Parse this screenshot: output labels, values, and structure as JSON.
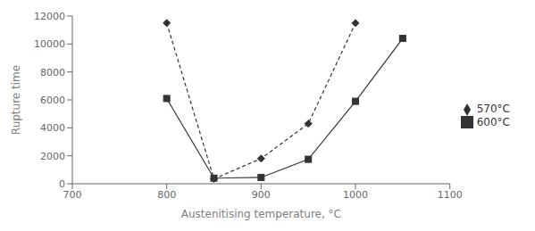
{
  "chart_data": {
    "type": "line",
    "xlabel": "Austenitising temperature, °C",
    "ylabel": "Rupture time",
    "xlim": [
      700,
      1100
    ],
    "xticks": [
      700,
      800,
      900,
      1000,
      1100
    ],
    "ylim": [
      0,
      12000
    ],
    "yticks": [
      0,
      2000,
      4000,
      6000,
      8000,
      10000,
      12000
    ],
    "grid": false,
    "legend": "right",
    "series": [
      {
        "name": "570°C",
        "color": "#333333",
        "marker": "diamond",
        "line_style": "dashed",
        "x": [
          800,
          850,
          900,
          950,
          1000
        ],
        "values": [
          11500,
          350,
          1800,
          4300,
          11500
        ]
      },
      {
        "name": "600°C",
        "color": "#333333",
        "marker": "square",
        "line_style": "solid",
        "x": [
          800,
          850,
          900,
          950,
          1000,
          1050
        ],
        "values": [
          6100,
          400,
          450,
          1750,
          5900,
          10400
        ]
      }
    ]
  }
}
